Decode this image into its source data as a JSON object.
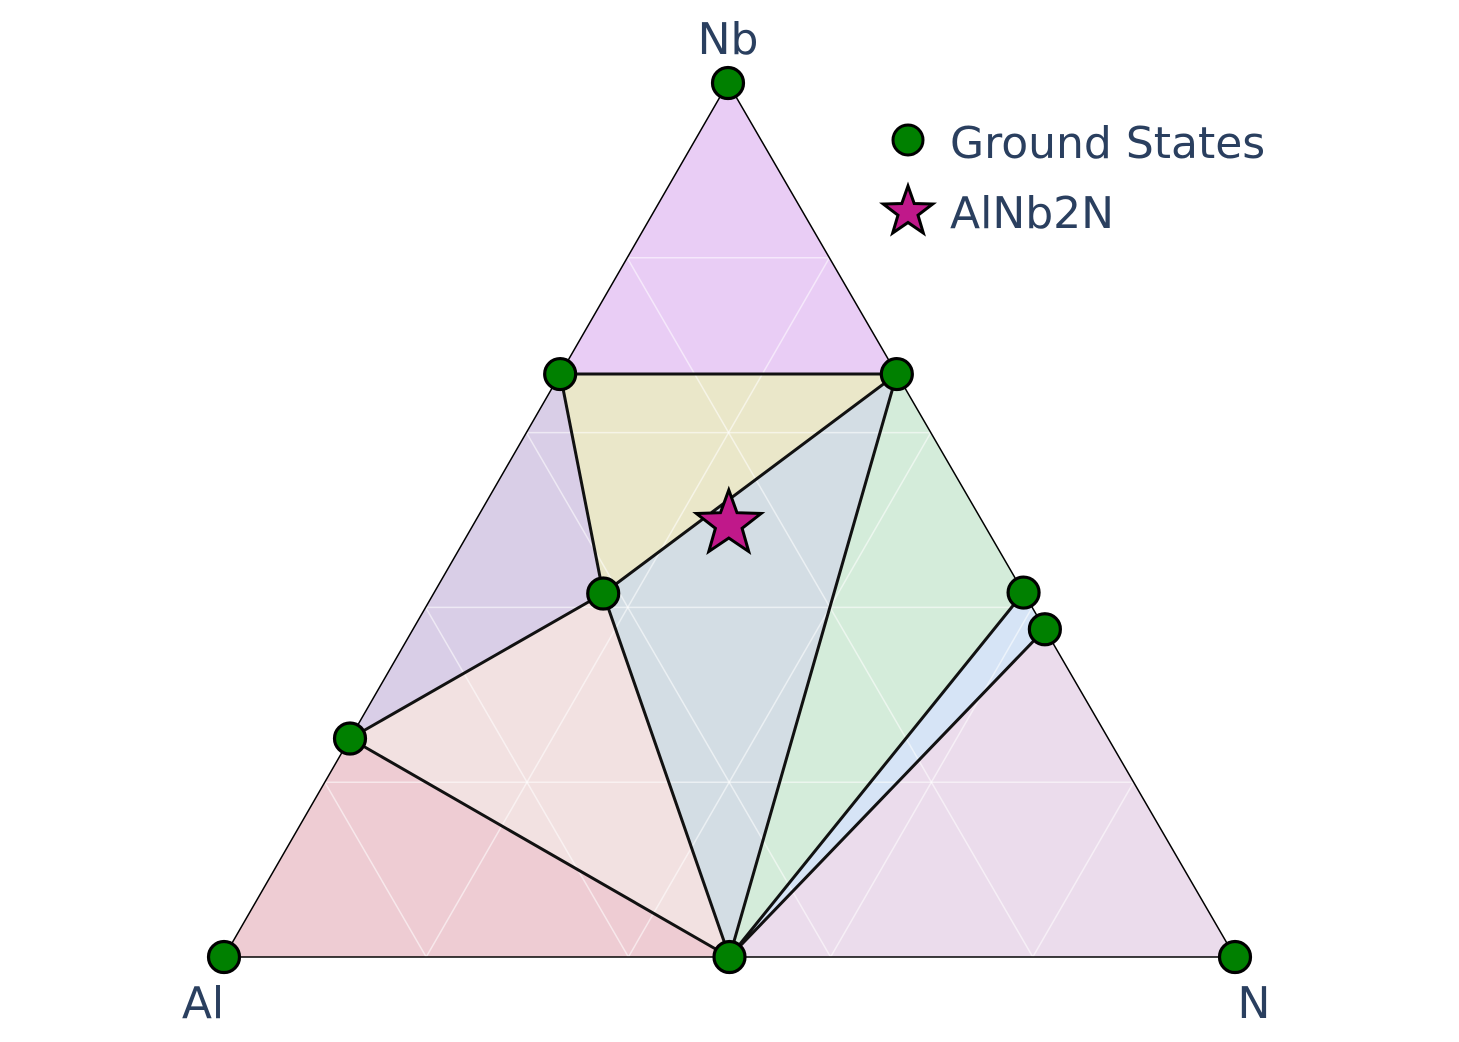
{
  "chart_data": {
    "type": "ternary-phase-diagram",
    "vertices": {
      "bottom_left": "Al",
      "top": "Nb",
      "bottom_right": "N"
    },
    "grid": true,
    "legend": {
      "placement": "top-right",
      "entries": [
        {
          "label": "Ground States",
          "marker": "circle",
          "color": "#008000"
        },
        {
          "label": "AlNb2N",
          "marker": "star",
          "color": "#c0188a"
        }
      ]
    },
    "ground_states": [
      {
        "Al": 1.0,
        "Nb": 0.0,
        "N": 0.0
      },
      {
        "Al": 0.0,
        "Nb": 1.0,
        "N": 0.0
      },
      {
        "Al": 0.0,
        "Nb": 0.0,
        "N": 1.0
      },
      {
        "Al": 0.5,
        "Nb": 0.0,
        "N": 0.5
      },
      {
        "Al": 0.75,
        "Nb": 0.25,
        "N": 0.0
      },
      {
        "Al": 0.333,
        "Nb": 0.667,
        "N": 0.0
      },
      {
        "Al": 0.417,
        "Nb": 0.417,
        "N": 0.167
      },
      {
        "Al": 0.0,
        "Nb": 0.667,
        "N": 0.333
      },
      {
        "Al": 0.0,
        "Nb": 0.417,
        "N": 0.583
      },
      {
        "Al": 0.0,
        "Nb": 0.375,
        "N": 0.625
      }
    ],
    "highlight": {
      "label": "AlNb2N",
      "Al": 0.25,
      "Nb": 0.5,
      "N": 0.25
    },
    "regions": [
      {
        "color": "#c67be6",
        "points": [
          1,
          5,
          7
        ]
      },
      {
        "color": "#c8c070",
        "points": [
          5,
          7,
          6
        ]
      },
      {
        "color": "#9b7ec0",
        "points": [
          5,
          6,
          4
        ]
      },
      {
        "color": "#dcb0b0",
        "points": [
          4,
          6,
          3
        ]
      },
      {
        "color": "#d27a8c",
        "points": [
          0,
          4,
          3
        ]
      },
      {
        "color": "#8ba5b8",
        "points": [
          6,
          7,
          3
        ]
      },
      {
        "color": "#8fcc9e",
        "points": [
          7,
          8,
          3
        ]
      },
      {
        "color": "#93b8e8",
        "points": [
          8,
          9,
          3
        ]
      },
      {
        "color": "#caa2cc",
        "points": [
          9,
          2,
          3
        ]
      }
    ],
    "tie_lines": [
      [
        5,
        7
      ],
      [
        5,
        6
      ],
      [
        6,
        7
      ],
      [
        6,
        4
      ],
      [
        6,
        3
      ],
      [
        4,
        3
      ],
      [
        7,
        3
      ],
      [
        8,
        3
      ],
      [
        9,
        3
      ]
    ]
  }
}
